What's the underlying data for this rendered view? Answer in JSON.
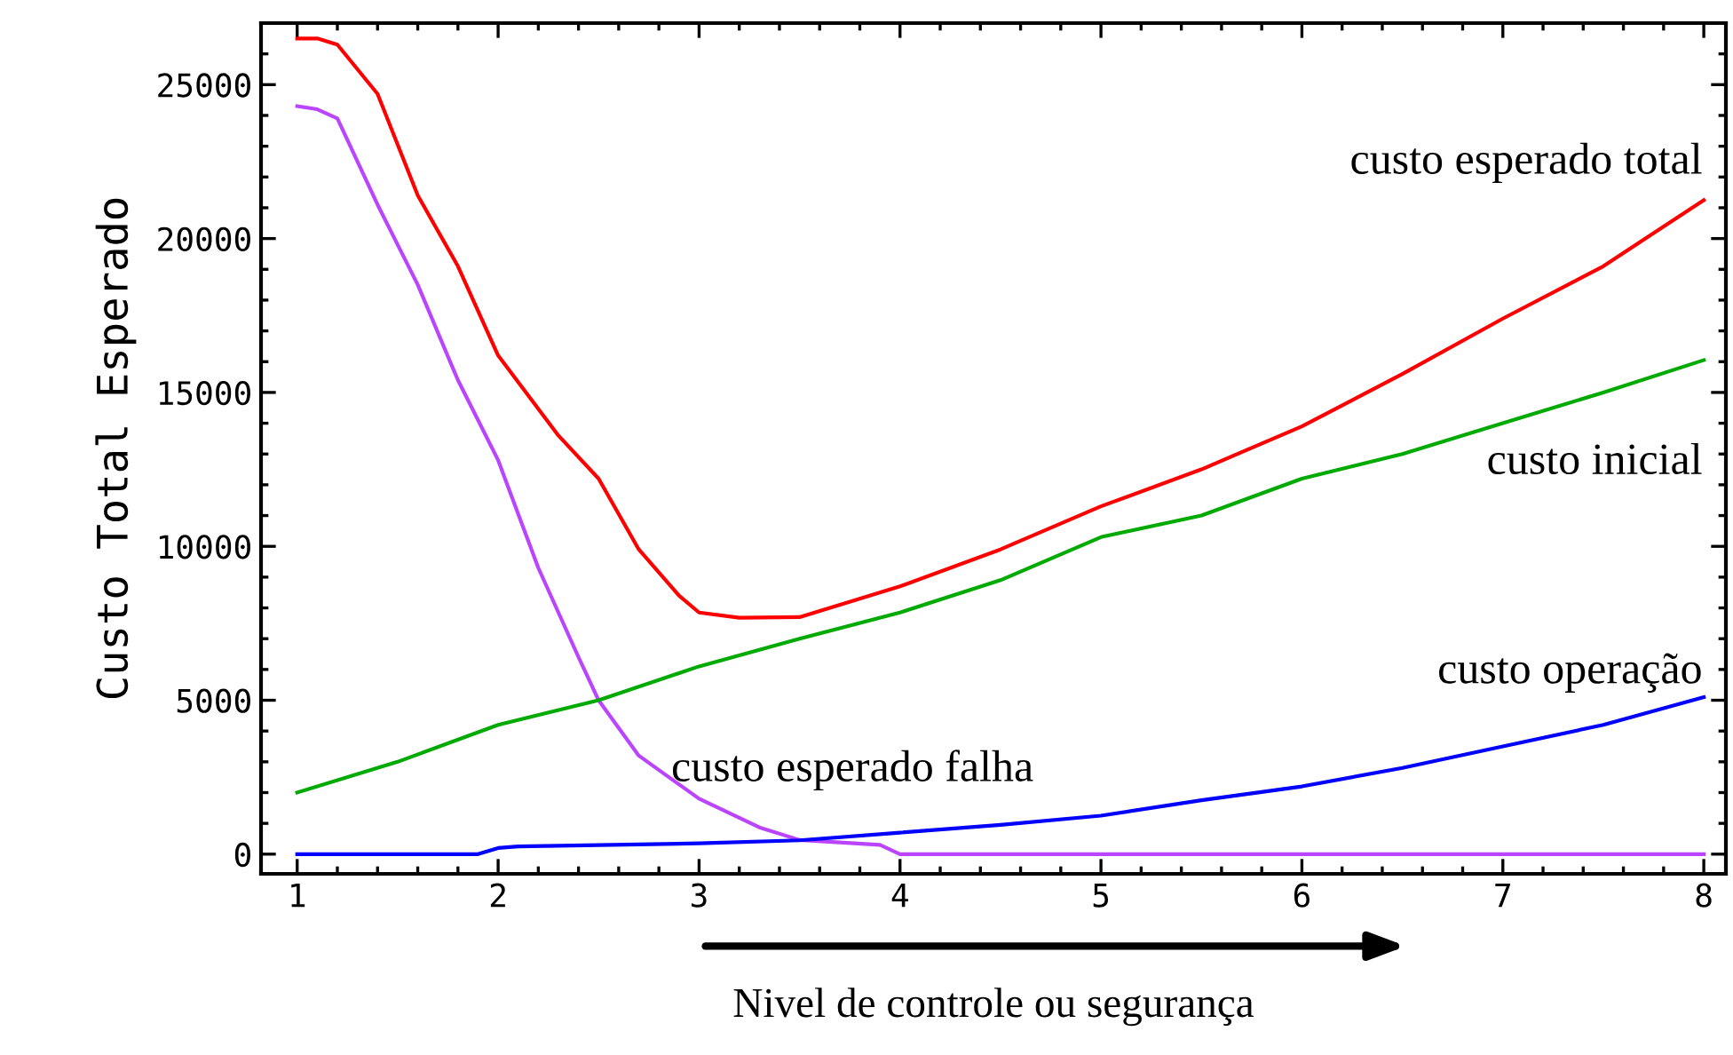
{
  "chart_data": {
    "type": "line",
    "xlabel": "Nivel de controle ou segurança",
    "ylabel": "Custo Total Esperado",
    "xlim": [
      0.82,
      8.11
    ],
    "ylim": [
      -640,
      27000
    ],
    "xticks": [
      1,
      2,
      3,
      4,
      5,
      6,
      7,
      8
    ],
    "yticks": [
      0,
      5000,
      10000,
      15000,
      20000,
      25000
    ],
    "grid": false,
    "legend": false,
    "marker": "none",
    "line_style": "solid",
    "series": [
      {
        "name": "custo esperado total",
        "color": "#ff0000",
        "x": [
          1,
          1.1,
          1.2,
          1.4,
          1.6,
          1.8,
          2.0,
          2.3,
          2.5,
          2.7,
          2.9,
          3.0,
          3.2,
          3.5,
          4,
          4.5,
          5,
          5.5,
          6,
          6.5,
          7,
          7.5,
          8
        ],
        "values": [
          26500,
          26500,
          26300,
          24700,
          21400,
          19100,
          16200,
          13600,
          12200,
          9900,
          8400,
          7850,
          7680,
          7700,
          8700,
          9900,
          11300,
          12500,
          13900,
          15600,
          17400,
          19100,
          21250
        ]
      },
      {
        "name": "custo esperado falha",
        "color": "#bb44ff",
        "x": [
          1,
          1.1,
          1.2,
          1.4,
          1.6,
          1.8,
          2.0,
          2.2,
          2.4,
          2.5,
          2.7,
          3.0,
          3.3,
          3.5,
          3.9,
          4.0,
          5,
          6,
          7,
          8
        ],
        "values": [
          24300,
          24200,
          23900,
          21100,
          18500,
          15400,
          12800,
          9300,
          6400,
          5000,
          3200,
          1800,
          870,
          460,
          300,
          0,
          0,
          0,
          0,
          0
        ]
      },
      {
        "name": "custo inicial",
        "color": "#00aa00",
        "x": [
          1,
          1.5,
          2,
          2.5,
          3,
          3.5,
          4,
          4.5,
          5,
          5.5,
          6,
          6.5,
          7,
          7.5,
          8
        ],
        "values": [
          2000,
          3000,
          4200,
          5000,
          6100,
          7000,
          7850,
          8900,
          10300,
          11000,
          12200,
          13000,
          14000,
          15000,
          16050
        ]
      },
      {
        "name": "custo operação",
        "color": "#0000ff",
        "x": [
          1,
          1.9,
          2.0,
          2.1,
          3,
          3.5,
          4,
          4.5,
          5,
          5.5,
          6,
          6.5,
          7,
          7.5,
          8
        ],
        "values": [
          0,
          0,
          200,
          250,
          350,
          450,
          700,
          950,
          1250,
          1750,
          2200,
          2800,
          3500,
          4200,
          5100
        ]
      }
    ]
  }
}
